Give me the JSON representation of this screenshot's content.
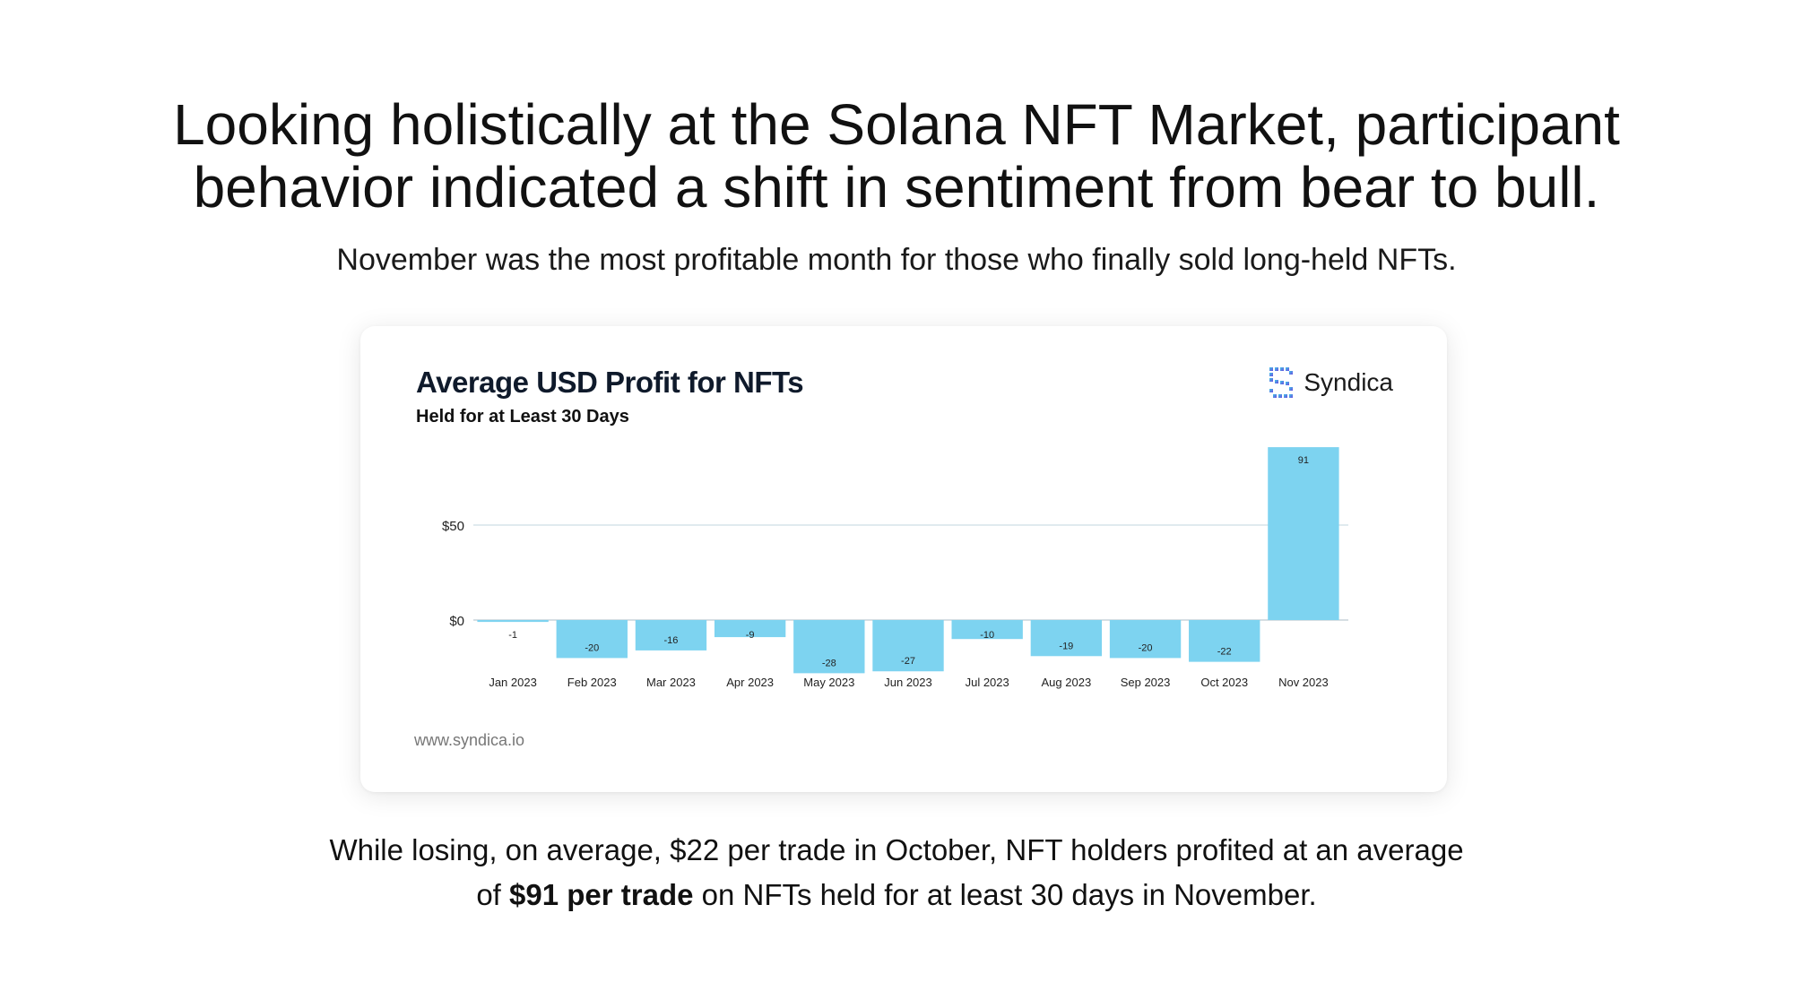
{
  "headline": {
    "line1": "Looking holistically at the Solana NFT Market, participant",
    "line2": "behavior indicated a shift in sentiment from bear to bull."
  },
  "subheadline": "November was the most profitable month for those who finally sold long-held NFTs.",
  "card": {
    "title": "Average USD Profit for NFTs",
    "subtitle": "Held for at Least 30 Days",
    "brand": "Syndica",
    "brand_icon": "syndica-logo-icon",
    "source": "www.syndica.io"
  },
  "chart_data": {
    "type": "bar",
    "title": "Average USD Profit for NFTs",
    "subtitle": "Held for at Least 30 Days",
    "categories": [
      "Jan 2023",
      "Feb 2023",
      "Mar 2023",
      "Apr 2023",
      "May 2023",
      "Jun 2023",
      "Jul 2023",
      "Aug 2023",
      "Sep 2023",
      "Oct 2023",
      "Nov 2023"
    ],
    "values": [
      -1,
      -20,
      -16,
      -9,
      -28,
      -27,
      -10,
      -19,
      -20,
      -22,
      91
    ],
    "data_labels": [
      "-1",
      "-20",
      "-16",
      "-9",
      "-28",
      "-27",
      "-10",
      "-19",
      "-20",
      "-22",
      "91"
    ],
    "y_ticks": [
      0,
      50
    ],
    "y_tick_labels": [
      "$0",
      "$50"
    ],
    "ylim": [
      -30,
      95
    ],
    "bar_color": "#7dd3f0",
    "grid": true,
    "legend": "none"
  },
  "footer": {
    "line1": "While losing, on average, $22 per trade in October, NFT holders profited at an average",
    "line2_prefix": "of ",
    "line2_bold": "$91 per trade",
    "line2_suffix": " on NFTs held for at least 30 days in November."
  }
}
